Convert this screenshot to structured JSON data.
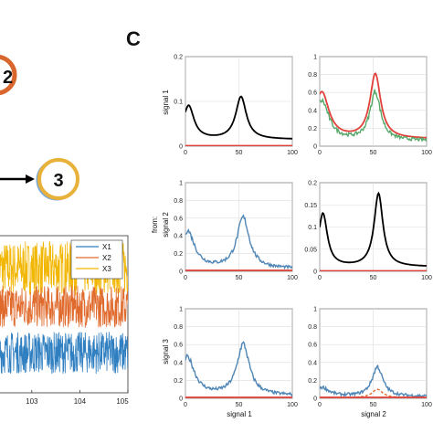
{
  "panel_label_c": "C",
  "node_labels": [
    "2",
    "3"
  ],
  "colors": {
    "x1": "#2f7fc1",
    "x2": "#e06a2c",
    "x3": "#f2b705",
    "black_spectrum": "#000000",
    "red": "#e0413a",
    "green": "#55a868",
    "blue_spectrum": "#4f86b5",
    "ring_orange": "#d9662c",
    "ring_gold": "#e8b23a"
  },
  "chart_data": [
    {
      "type": "line",
      "panel": "B (time series, cropped)",
      "x_ticks": [
        "103",
        "104",
        "105"
      ],
      "xlim": [
        102.3,
        105
      ],
      "series": [
        {
          "name": "X1",
          "mean": -1.0,
          "amplitude": 0.55
        },
        {
          "name": "X2",
          "mean": 0.2,
          "amplitude": 0.55
        },
        {
          "name": "X3",
          "mean": 1.2,
          "amplitude": 0.7
        }
      ]
    },
    {
      "type": "line",
      "panel": "C (spectral grid)",
      "xlim": [
        0,
        100
      ],
      "x_ticks": [
        "0",
        "50",
        "100"
      ],
      "col_labels": [
        "signal 1",
        "signal 2"
      ],
      "row_labels": [
        "signal 1",
        "signal 2",
        "signal 3"
      ],
      "from_label": "from:",
      "cells": [
        {
          "row": 0,
          "col": 0,
          "ylim": [
            0,
            0.2
          ],
          "y_ticks": [
            "0",
            "0.1",
            "0.2"
          ],
          "series": [
            {
              "color": "black",
              "peaks": [
                [
                  3,
                  0.09,
                  6
                ],
                [
                  52,
                  0.11,
                  6
                ]
              ],
              "base": 0.015
            },
            {
              "color": "red",
              "flat": 0.001
            }
          ]
        },
        {
          "row": 0,
          "col": 1,
          "ylim": [
            0,
            1
          ],
          "y_ticks": [
            "0",
            "0.2",
            "0.4",
            "0.6",
            "0.8",
            "1"
          ],
          "series": [
            {
              "color": "red",
              "peaks": [
                [
                  2,
                  0.6,
                  8
                ],
                [
                  52,
                  0.8,
                  6
                ]
              ],
              "base": 0.08
            },
            {
              "color": "green",
              "peaks": [
                [
                  2,
                  0.5,
                  8
                ],
                [
                  52,
                  0.6,
                  6
                ]
              ],
              "base": 0.06,
              "noisy": true
            }
          ]
        },
        {
          "row": 1,
          "col": 0,
          "ylim": [
            0,
            1
          ],
          "y_ticks": [
            "0",
            "0.2",
            "0.4",
            "0.6",
            "0.8",
            "1"
          ],
          "series": [
            {
              "color": "blue",
              "peaks": [
                [
                  2,
                  0.45,
                  8
                ],
                [
                  54,
                  0.6,
                  7
                ]
              ],
              "base": 0.03,
              "noisy": true
            },
            {
              "color": "red",
              "flat": 0.01
            }
          ]
        },
        {
          "row": 1,
          "col": 1,
          "ylim": [
            0,
            0.2
          ],
          "y_ticks": [
            "0",
            "0.05",
            "0.1",
            "0.15",
            "0.2"
          ],
          "series": [
            {
              "color": "black",
              "peaks": [
                [
                  3,
                  0.13,
                  5
                ],
                [
                  55,
                  0.175,
                  5
                ]
              ],
              "base": 0.01
            },
            {
              "color": "red",
              "flat": 0.001
            }
          ]
        },
        {
          "row": 2,
          "col": 0,
          "ylim": [
            0,
            1
          ],
          "y_ticks": [
            "0",
            "0.2",
            "0.4",
            "0.6",
            "0.8",
            "1"
          ],
          "series": [
            {
              "color": "blue",
              "peaks": [
                [
                  2,
                  0.45,
                  8
                ],
                [
                  54,
                  0.6,
                  7
                ]
              ],
              "base": 0.03,
              "noisy": true
            },
            {
              "color": "red",
              "flat": 0.01
            }
          ]
        },
        {
          "row": 2,
          "col": 1,
          "ylim": [
            0,
            1
          ],
          "y_ticks": [
            "0",
            "0.2",
            "0.4",
            "0.6",
            "0.8",
            "1"
          ],
          "series": [
            {
              "color": "blue",
              "peaks": [
                [
                  2,
                  0.12,
                  8
                ],
                [
                  54,
                  0.35,
                  6
                ]
              ],
              "base": 0.02,
              "noisy": true
            },
            {
              "color": "orange",
              "peaks": [
                [
                  54,
                  0.1,
                  6
                ]
              ],
              "base": 0.005,
              "dashed": true
            },
            {
              "color": "red",
              "flat": 0.01
            }
          ]
        }
      ]
    }
  ]
}
